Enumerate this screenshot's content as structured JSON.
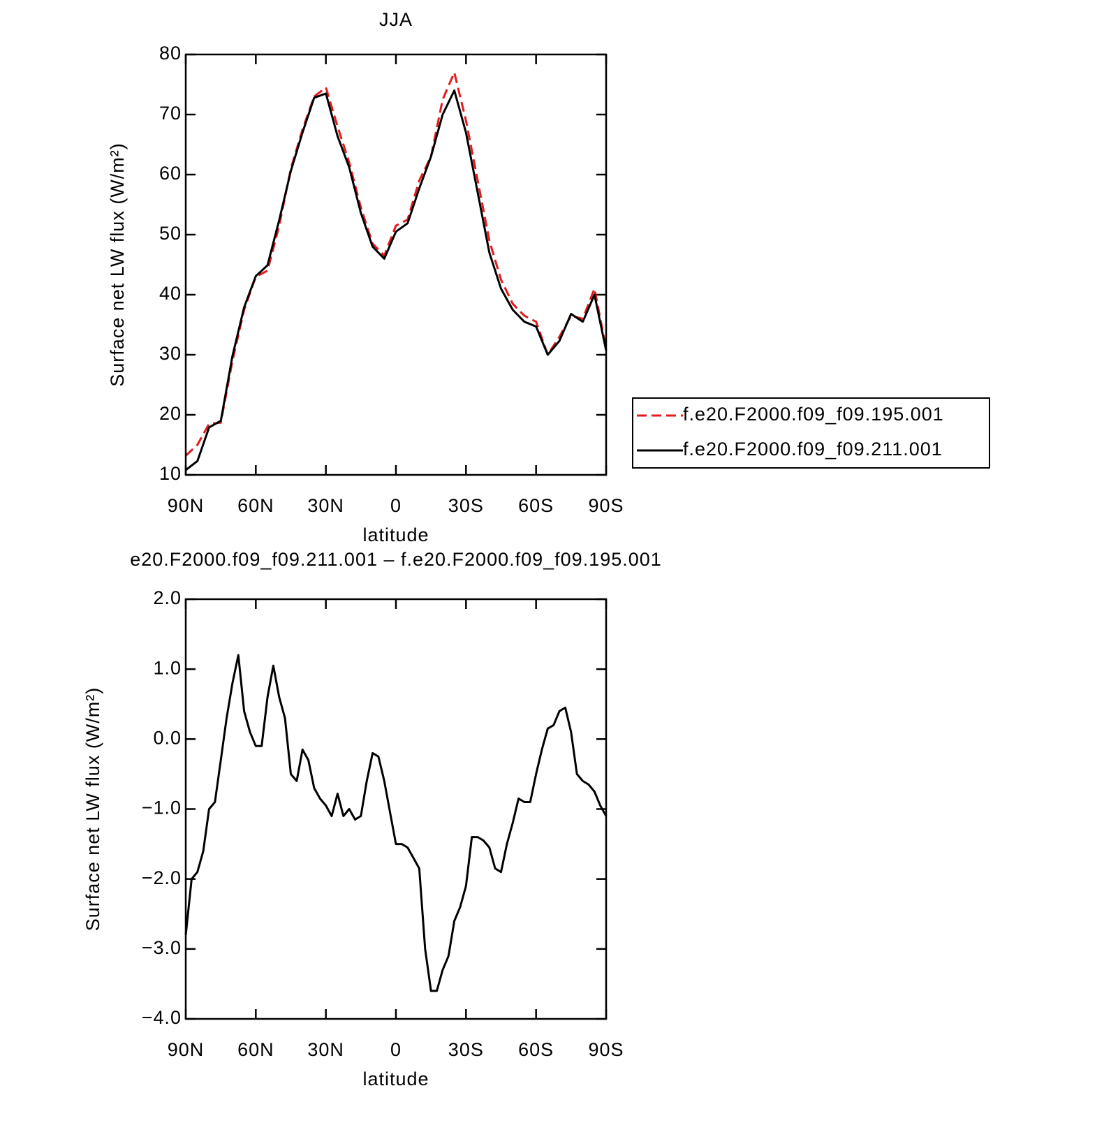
{
  "chart_data": [
    {
      "type": "line",
      "title": "JJA",
      "xlabel": "latitude",
      "ylabel": "Surface net LW flux (W/m²)",
      "legend": "right",
      "x": [
        90,
        85,
        80,
        75,
        70,
        65,
        60,
        55,
        50,
        45,
        40,
        35,
        30,
        25,
        20,
        15,
        10,
        5,
        0,
        -5,
        -10,
        -15,
        -20,
        -25,
        -30,
        -35,
        -40,
        -45,
        -50,
        -55,
        -60,
        -65,
        -70,
        -75,
        -80,
        -85,
        -90
      ],
      "series": [
        {
          "name": "f.e20.F2000.f09_f09.195.001",
          "color": "#e41a1c",
          "style": "dashed",
          "values": [
            13.2,
            15,
            18.5,
            18.7,
            29,
            37.5,
            43,
            44,
            51.5,
            61,
            67.5,
            73,
            74.5,
            68,
            62,
            54.5,
            48.5,
            46.5,
            51.5,
            52.5,
            59,
            63,
            72.5,
            77,
            69,
            59,
            49,
            42.5,
            38.5,
            36.5,
            35.5,
            30,
            33,
            36.5,
            36,
            41,
            31
          ]
        },
        {
          "name": "f.e20.F2000.f09_f09.211.001",
          "color": "#000000",
          "style": "solid",
          "values": [
            10.8,
            12.3,
            17.9,
            19,
            29.8,
            37.9,
            43.1,
            44.9,
            52.4,
            60.6,
            67,
            72.8,
            73.5,
            66.4,
            61.2,
            53.6,
            48,
            46,
            50.5,
            51.9,
            57.7,
            63,
            70,
            74,
            67,
            57,
            47,
            41,
            37.5,
            35.5,
            34.7,
            30,
            32.3,
            36.8,
            35.5,
            40,
            30.7
          ]
        }
      ],
      "xlim": [
        90,
        -90
      ],
      "xticks": [
        {
          "value": 90,
          "label": "90N"
        },
        {
          "value": 60,
          "label": "60N"
        },
        {
          "value": 30,
          "label": "30N"
        },
        0,
        {
          "value": -30,
          "label": "30S"
        },
        {
          "value": -60,
          "label": "60S"
        },
        {
          "value": -90,
          "label": "90S"
        }
      ],
      "ylim": [
        10,
        80
      ],
      "yticks": [
        10,
        20,
        30,
        40,
        50,
        60,
        70,
        80
      ]
    },
    {
      "type": "line",
      "title": "e20.F2000.f09_f09.211.001 – f.e20.F2000.f09_f09.195.001",
      "xlabel": "latitude",
      "ylabel": "Surface net LW flux (W/m²)",
      "x": [
        90,
        87.5,
        85,
        82.5,
        80,
        77.5,
        75,
        72.5,
        70,
        67.5,
        65,
        62.5,
        60,
        57.5,
        55,
        52.5,
        50,
        47.5,
        45,
        42.5,
        40,
        37.5,
        35,
        32.5,
        30,
        27.5,
        25,
        22.5,
        20,
        17.5,
        15,
        12.5,
        10,
        7.5,
        5,
        2.5,
        0,
        -2.5,
        -5,
        -7.5,
        -10,
        -12.5,
        -15,
        -17.5,
        -20,
        -22.5,
        -25,
        -27.5,
        -30,
        -32.5,
        -35,
        -37.5,
        -40,
        -42.5,
        -45,
        -47.5,
        -50,
        -52.5,
        -55,
        -57.5,
        -60,
        -62.5,
        -65,
        -67.5,
        -70,
        -72.5,
        -75,
        -77.5,
        -80,
        -82.5,
        -85,
        -87.5,
        -90
      ],
      "series": [
        {
          "color": "#000000",
          "style": "solid",
          "values": [
            -2.8,
            -2.0,
            -1.9,
            -1.6,
            -1.0,
            -0.9,
            -0.3,
            0.3,
            0.8,
            1.2,
            0.4,
            0.1,
            -0.1,
            -0.1,
            0.6,
            1.05,
            0.6,
            0.3,
            -0.5,
            -0.6,
            -0.15,
            -0.3,
            -0.7,
            -0.85,
            -0.95,
            -1.1,
            -0.78,
            -1.1,
            -1.0,
            -1.15,
            -1.1,
            -0.6,
            -0.2,
            -0.25,
            -0.6,
            -1.05,
            -1.5,
            -1.5,
            -1.55,
            -1.7,
            -1.85,
            -3.0,
            -3.6,
            -3.6,
            -3.3,
            -3.1,
            -2.6,
            -2.4,
            -2.1,
            -1.4,
            -1.4,
            -1.45,
            -1.55,
            -1.85,
            -1.9,
            -1.5,
            -1.2,
            -0.85,
            -0.9,
            -0.9,
            -0.5,
            -0.15,
            0.15,
            0.2,
            0.4,
            0.45,
            0.1,
            -0.5,
            -0.6,
            -0.65,
            -0.75,
            -0.95,
            -1.1
          ]
        }
      ],
      "xlim": [
        90,
        -90
      ],
      "xticks": [
        {
          "value": 90,
          "label": "90N"
        },
        {
          "value": 60,
          "label": "60N"
        },
        {
          "value": 30,
          "label": "30N"
        },
        0,
        {
          "value": -30,
          "label": "30S"
        },
        {
          "value": -60,
          "label": "60S"
        },
        {
          "value": -90,
          "label": "90S"
        }
      ],
      "ylim": [
        -4,
        2
      ],
      "yticks": [
        {
          "value": -4,
          "label": "−4.0"
        },
        {
          "value": -3,
          "label": "−3.0"
        },
        {
          "value": -2,
          "label": "−2.0"
        },
        {
          "value": -1,
          "label": "−1.0"
        },
        {
          "value": 0,
          "label": "0.0"
        },
        {
          "value": 1,
          "label": "1.0"
        },
        {
          "value": 2,
          "label": "2.0"
        }
      ]
    }
  ]
}
